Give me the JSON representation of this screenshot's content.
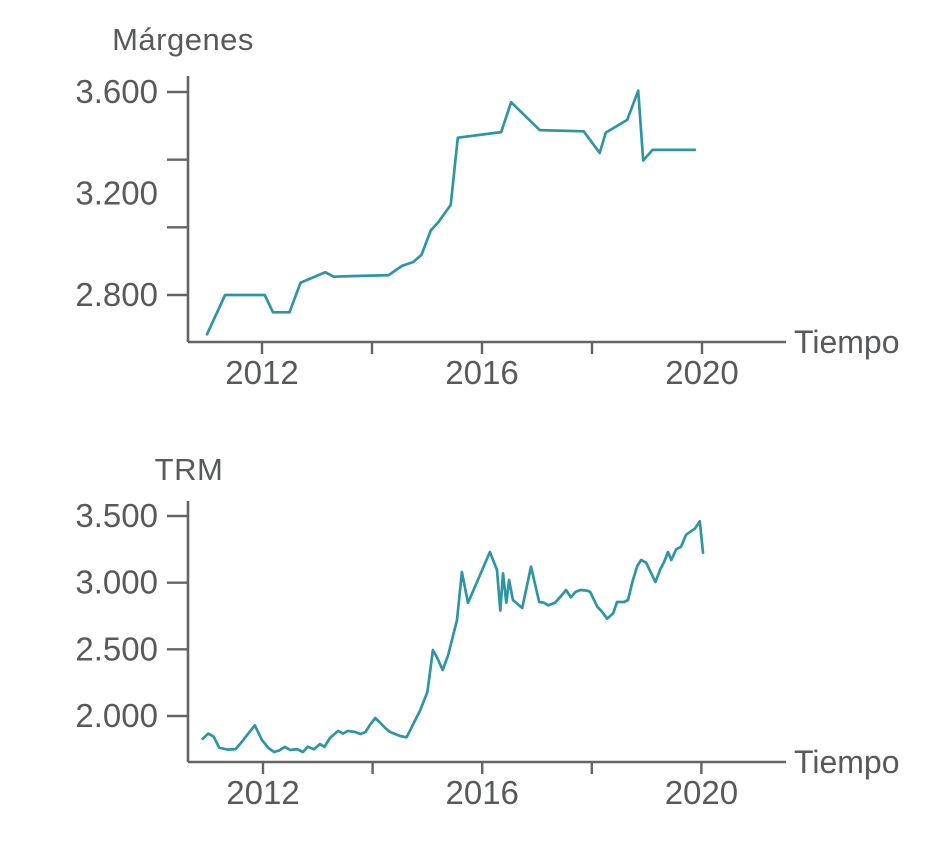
{
  "figure": {
    "background": "#ffffff",
    "text_color": "#58595B",
    "axis_color": "#636466",
    "accent_color": "#2E96A3"
  },
  "chart_data": [
    {
      "id": "margenes",
      "type": "line",
      "title": "Márgenes",
      "xlabel": "Tiempo",
      "ylabel": "",
      "line_color": "#2E96A3",
      "legend": "none",
      "grid": false,
      "x_range": [
        2011,
        2020.4
      ],
      "ylim": [
        2615,
        3650
      ],
      "y_labels": [
        {
          "text": "3.600",
          "value": 3600
        },
        {
          "text": "3.200",
          "value": 3200
        },
        {
          "text": "2.800",
          "value": 2800
        }
      ],
      "x_tick_years": [
        2012,
        2014,
        2016,
        2018,
        2020
      ],
      "x_labels": [
        {
          "text": "2012",
          "year": 2012
        },
        {
          "text": "2016",
          "year": 2016
        },
        {
          "text": "2020",
          "year": 2020
        }
      ],
      "series": [
        {
          "name": "Márgenes",
          "points": [
            [
              2011.0,
              2645
            ],
            [
              2011.33,
              2800
            ],
            [
              2012.05,
              2800
            ],
            [
              2012.2,
              2732
            ],
            [
              2012.5,
              2732
            ],
            [
              2012.7,
              2848
            ],
            [
              2012.85,
              2862
            ],
            [
              2013.15,
              2890
            ],
            [
              2013.3,
              2872
            ],
            [
              2013.7,
              2875
            ],
            [
              2014.3,
              2878
            ],
            [
              2014.55,
              2915
            ],
            [
              2014.75,
              2930
            ],
            [
              2014.9,
              2958
            ],
            [
              2015.07,
              3055
            ],
            [
              2015.2,
              3085
            ],
            [
              2015.43,
              3155
            ],
            [
              2015.56,
              3420
            ],
            [
              2016.35,
              3442
            ],
            [
              2016.53,
              3560
            ],
            [
              2017.05,
              3450
            ],
            [
              2017.85,
              3445
            ],
            [
              2018.14,
              3360
            ],
            [
              2018.25,
              3440
            ],
            [
              2018.64,
              3490
            ],
            [
              2018.84,
              3605
            ],
            [
              2018.93,
              3330
            ],
            [
              2019.1,
              3372
            ],
            [
              2019.87,
              3372
            ]
          ]
        }
      ]
    },
    {
      "id": "trm",
      "type": "line",
      "title": "TRM",
      "xlabel": "Tiempo",
      "ylabel": "",
      "line_color": "#2E96A3",
      "legend": "none",
      "grid": false,
      "x_range": [
        2010.9,
        2020.4
      ],
      "ylim": [
        1655,
        3610
      ],
      "y_labels": [
        {
          "text": "3.500",
          "value": 3500
        },
        {
          "text": "3.000",
          "value": 3000
        },
        {
          "text": "2.500",
          "value": 2500
        },
        {
          "text": "2.000",
          "value": 2000
        }
      ],
      "x_tick_years": [
        2012,
        2014,
        2016,
        2018,
        2020
      ],
      "x_labels": [
        {
          "text": "2012",
          "year": 2012
        },
        {
          "text": "2016",
          "year": 2016
        },
        {
          "text": "2020",
          "year": 2020
        }
      ],
      "series": [
        {
          "name": "TRM",
          "points": [
            [
              2010.9,
              1830
            ],
            [
              2011.0,
              1868
            ],
            [
              2011.1,
              1845
            ],
            [
              2011.2,
              1762
            ],
            [
              2011.35,
              1748
            ],
            [
              2011.5,
              1752
            ],
            [
              2011.6,
              1800
            ],
            [
              2011.85,
              1930
            ],
            [
              2011.98,
              1820
            ],
            [
              2012.1,
              1760
            ],
            [
              2012.2,
              1730
            ],
            [
              2012.3,
              1742
            ],
            [
              2012.4,
              1768
            ],
            [
              2012.5,
              1745
            ],
            [
              2012.62,
              1752
            ],
            [
              2012.73,
              1730
            ],
            [
              2012.82,
              1770
            ],
            [
              2012.93,
              1750
            ],
            [
              2013.04,
              1790
            ],
            [
              2013.12,
              1768
            ],
            [
              2013.22,
              1835
            ],
            [
              2013.37,
              1888
            ],
            [
              2013.46,
              1868
            ],
            [
              2013.55,
              1888
            ],
            [
              2013.68,
              1880
            ],
            [
              2013.78,
              1865
            ],
            [
              2013.87,
              1880
            ],
            [
              2013.95,
              1933
            ],
            [
              2014.05,
              1985
            ],
            [
              2014.14,
              1948
            ],
            [
              2014.23,
              1910
            ],
            [
              2014.32,
              1880
            ],
            [
              2014.41,
              1865
            ],
            [
              2014.5,
              1850
            ],
            [
              2014.62,
              1840
            ],
            [
              2014.87,
              2045
            ],
            [
              2015.0,
              2180
            ],
            [
              2015.1,
              2495
            ],
            [
              2015.18,
              2435
            ],
            [
              2015.28,
              2345
            ],
            [
              2015.38,
              2458
            ],
            [
              2015.54,
              2720
            ],
            [
              2015.63,
              3080
            ],
            [
              2015.74,
              2848
            ],
            [
              2016.14,
              3230
            ],
            [
              2016.27,
              3095
            ],
            [
              2016.33,
              2790
            ],
            [
              2016.38,
              3070
            ],
            [
              2016.44,
              2850
            ],
            [
              2016.49,
              3020
            ],
            [
              2016.56,
              2870
            ],
            [
              2016.73,
              2810
            ],
            [
              2016.89,
              3120
            ],
            [
              2017.04,
              2855
            ],
            [
              2017.13,
              2850
            ],
            [
              2017.2,
              2830
            ],
            [
              2017.33,
              2850
            ],
            [
              2017.46,
              2910
            ],
            [
              2017.53,
              2945
            ],
            [
              2017.62,
              2890
            ],
            [
              2017.7,
              2930
            ],
            [
              2017.79,
              2945
            ],
            [
              2017.92,
              2940
            ],
            [
              2017.97,
              2930
            ],
            [
              2018.1,
              2820
            ],
            [
              2018.19,
              2780
            ],
            [
              2018.28,
              2730
            ],
            [
              2018.39,
              2770
            ],
            [
              2018.46,
              2855
            ],
            [
              2018.59,
              2855
            ],
            [
              2018.66,
              2870
            ],
            [
              2018.75,
              3020
            ],
            [
              2018.83,
              3125
            ],
            [
              2018.9,
              3170
            ],
            [
              2018.99,
              3150
            ],
            [
              2019.16,
              3005
            ],
            [
              2019.25,
              3100
            ],
            [
              2019.32,
              3155
            ],
            [
              2019.39,
              3230
            ],
            [
              2019.45,
              3170
            ],
            [
              2019.54,
              3250
            ],
            [
              2019.63,
              3270
            ],
            [
              2019.72,
              3360
            ],
            [
              2019.81,
              3385
            ],
            [
              2019.88,
              3405
            ],
            [
              2019.97,
              3460
            ],
            [
              2020.03,
              3225
            ]
          ]
        }
      ]
    }
  ]
}
